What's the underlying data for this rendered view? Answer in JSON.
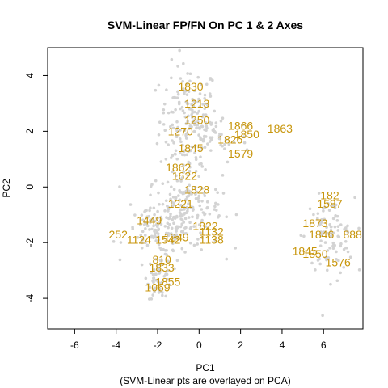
{
  "chart_data": {
    "type": "scatter",
    "title": "SVM-Linear FP/FN On PC 1 & 2 Axes",
    "xlabel": "PC1",
    "subtitle": "(SVM-Linear pts are overlayed on PCA)",
    "ylabel": "PC2",
    "xlim": [
      -7.3,
      7.9
    ],
    "ylim": [
      -5.1,
      5.0
    ],
    "x_ticks": [
      -6,
      -4,
      -2,
      0,
      2,
      4,
      6
    ],
    "y_ticks": [
      -4,
      -2,
      0,
      2,
      4
    ],
    "colors": {
      "background_points": "#d3d3d3",
      "labels": "#c8960c",
      "axes": "#000000"
    },
    "background_clusters": [
      {
        "cx": -0.5,
        "cy": 2.4,
        "sx": 0.7,
        "sy": 1.0,
        "n": 170
      },
      {
        "cx": -0.7,
        "cy": -0.8,
        "sx": 0.9,
        "sy": 0.7,
        "n": 190
      },
      {
        "cx": -2.0,
        "cy": -1.6,
        "sx": 0.8,
        "sy": 0.4,
        "n": 90
      },
      {
        "cx": -1.9,
        "cy": -3.2,
        "sx": 0.3,
        "sy": 0.4,
        "n": 55
      },
      {
        "cx": 6.3,
        "cy": -1.8,
        "sx": 0.6,
        "sy": 0.7,
        "n": 90
      },
      {
        "cx": 0.8,
        "cy": 1.8,
        "sx": 0.8,
        "sy": 0.5,
        "n": 40
      }
    ],
    "points": [
      {
        "label": "1830",
        "x": -0.4,
        "y": 3.6
      },
      {
        "label": "1213",
        "x": -0.1,
        "y": 3.0
      },
      {
        "label": "1250",
        "x": -0.1,
        "y": 2.4
      },
      {
        "label": "1866",
        "x": 2.0,
        "y": 2.2
      },
      {
        "label": "1863",
        "x": 3.9,
        "y": 2.1
      },
      {
        "label": "1850",
        "x": 2.3,
        "y": 1.9
      },
      {
        "label": "1826",
        "x": 1.5,
        "y": 1.7
      },
      {
        "label": "1579",
        "x": 2.0,
        "y": 1.2
      },
      {
        "label": "1270",
        "x": -0.9,
        "y": 2.0
      },
      {
        "label": "1845",
        "x": -0.4,
        "y": 1.4
      },
      {
        "label": "1862",
        "x": -1.0,
        "y": 0.7
      },
      {
        "label": "1622",
        "x": -0.7,
        "y": 0.4
      },
      {
        "label": "1828",
        "x": -0.1,
        "y": -0.1
      },
      {
        "label": "1221",
        "x": -0.9,
        "y": -0.6
      },
      {
        "label": "1822",
        "x": 0.3,
        "y": -1.4
      },
      {
        "label": "1132",
        "x": 0.6,
        "y": -1.6
      },
      {
        "label": "1138",
        "x": 0.6,
        "y": -1.9
      },
      {
        "label": "1449",
        "x": -2.4,
        "y": -1.2
      },
      {
        "label": "1542",
        "x": -1.5,
        "y": -1.9
      },
      {
        "label": "1249",
        "x": -1.1,
        "y": -1.8
      },
      {
        "label": "1124",
        "x": -2.9,
        "y": -1.9
      },
      {
        "label": "252",
        "x": -3.9,
        "y": -1.7
      },
      {
        "label": "810",
        "x": -1.8,
        "y": -2.6
      },
      {
        "label": "1833",
        "x": -1.8,
        "y": -2.9
      },
      {
        "label": "1855",
        "x": -1.5,
        "y": -3.4
      },
      {
        "label": "1069",
        "x": -2.0,
        "y": -3.6
      },
      {
        "label": "182",
        "x": 6.3,
        "y": -0.3
      },
      {
        "label": "1587",
        "x": 6.3,
        "y": -0.6
      },
      {
        "label": "1873",
        "x": 5.6,
        "y": -1.3
      },
      {
        "label": "1846",
        "x": 5.9,
        "y": -1.7
      },
      {
        "label": "888",
        "x": 7.4,
        "y": -1.7
      },
      {
        "label": "1845",
        "x": 5.1,
        "y": -2.3
      },
      {
        "label": "1850",
        "x": 5.6,
        "y": -2.4
      },
      {
        "label": "1576",
        "x": 6.7,
        "y": -2.7
      }
    ]
  }
}
